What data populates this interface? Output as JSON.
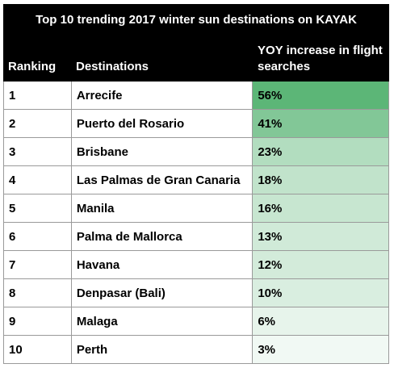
{
  "chart_data": {
    "type": "table",
    "title": "Top 10 trending 2017 winter sun destinations on KAYAK",
    "columns": [
      "Ranking",
      "Destinations",
      "YOY increase in flight searches"
    ],
    "rows": [
      {
        "rank": "1",
        "destination": "Arrecife",
        "increase": "56%",
        "value": 56
      },
      {
        "rank": "2",
        "destination": "Puerto del Rosario",
        "increase": "41%",
        "value": 41
      },
      {
        "rank": "3",
        "destination": "Brisbane",
        "increase": "23%",
        "value": 23
      },
      {
        "rank": "4",
        "destination": "Las Palmas de Gran Canaria",
        "increase": "18%",
        "value": 18
      },
      {
        "rank": "5",
        "destination": "Manila",
        "increase": "16%",
        "value": 16
      },
      {
        "rank": "6",
        "destination": "Palma de Mallorca",
        "increase": "13%",
        "value": 13
      },
      {
        "rank": "7",
        "destination": "Havana",
        "increase": "12%",
        "value": 12
      },
      {
        "rank": "8",
        "destination": "Denpasar (Bali)",
        "increase": "10%",
        "value": 10
      },
      {
        "rank": "9",
        "destination": "Malaga",
        "increase": "6%",
        "value": 6
      },
      {
        "rank": "10",
        "destination": "Perth",
        "increase": "3%",
        "value": 3
      }
    ],
    "highlight_color": "#5cb677"
  }
}
